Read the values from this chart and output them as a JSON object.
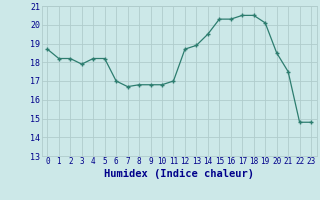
{
  "x": [
    0,
    1,
    2,
    3,
    4,
    5,
    6,
    7,
    8,
    9,
    10,
    11,
    12,
    13,
    14,
    15,
    16,
    17,
    18,
    19,
    20,
    21,
    22,
    23
  ],
  "y": [
    18.7,
    18.2,
    18.2,
    17.9,
    18.2,
    18.2,
    17.0,
    16.7,
    16.8,
    16.8,
    16.8,
    17.0,
    18.7,
    18.9,
    19.5,
    20.3,
    20.3,
    20.5,
    20.5,
    20.1,
    18.5,
    17.5,
    14.8,
    14.8
  ],
  "xlabel": "Humidex (Indice chaleur)",
  "ylim": [
    13,
    21
  ],
  "xlim": [
    -0.5,
    23.5
  ],
  "yticks": [
    13,
    14,
    15,
    16,
    17,
    18,
    19,
    20,
    21
  ],
  "xticks": [
    0,
    1,
    2,
    3,
    4,
    5,
    6,
    7,
    8,
    9,
    10,
    11,
    12,
    13,
    14,
    15,
    16,
    17,
    18,
    19,
    20,
    21,
    22,
    23
  ],
  "line_color": "#2d7d6f",
  "marker": "+",
  "bg_color": "#cce8e8",
  "grid_color_major": "#b0cccc",
  "grid_color_minor": "#ddf0f0",
  "font_color": "#00008b",
  "tick_fontsize": 5.5,
  "xlabel_fontsize": 7.5
}
